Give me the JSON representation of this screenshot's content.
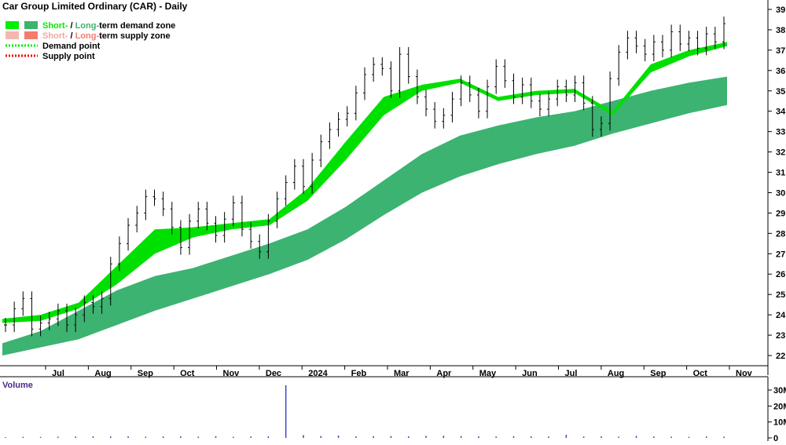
{
  "chart_data": {
    "type": "line",
    "title": "Car Group Limited Ordinary (CAR) - Daily",
    "legend": {
      "placement": "top-left",
      "items": [
        {
          "parts": [
            {
              "text": "Short-",
              "color": "#00ee00"
            },
            {
              "text": " / ",
              "color": "#000000"
            },
            {
              "text": "Long-",
              "color": "#3cb371"
            },
            {
              "text": "term demand zone",
              "color": "#000000"
            }
          ],
          "swatches": [
            "#00ee00",
            "#3cb371"
          ],
          "kind": "box"
        },
        {
          "parts": [
            {
              "text": "Short-",
              "color": "#f4a6a0"
            },
            {
              "text": " / ",
              "color": "#000000"
            },
            {
              "text": "Long-",
              "color": "#f47c6c"
            },
            {
              "text": "term supply zone",
              "color": "#000000"
            }
          ],
          "swatches": [
            "#f4b6b0",
            "#f47c6c"
          ],
          "kind": "box"
        },
        {
          "parts": [
            {
              "text": "Demand point",
              "color": "#000000"
            }
          ],
          "swatches": [
            "#00ee00"
          ],
          "kind": "dots"
        },
        {
          "parts": [
            {
              "text": "Supply point",
              "color": "#000000"
            }
          ],
          "swatches": [
            "#ee0000"
          ],
          "kind": "dots"
        }
      ]
    },
    "x_tick_labels": [
      "Jul",
      "Aug",
      "Sep",
      "Oct",
      "Nov",
      "Dec",
      "2024",
      "Feb",
      "Mar",
      "Apr",
      "May",
      "Jun",
      "Jul",
      "Aug",
      "Sep",
      "Oct",
      "Nov"
    ],
    "y_ticks": [
      22,
      23,
      24,
      25,
      26,
      27,
      28,
      29,
      30,
      31,
      32,
      33,
      34,
      35,
      36,
      37,
      38,
      39
    ],
    "ylim": [
      21.2,
      39.3
    ],
    "volume": {
      "label": "Volume",
      "y_tick_labels": [
        "0",
        "10M",
        "20M",
        "30M"
      ],
      "ylim": [
        0,
        34
      ],
      "values_millions": [
        0.5,
        0.7,
        0.6,
        0.8,
        0.9,
        1.0,
        0.9,
        1.0,
        0.8,
        0.9,
        1.0,
        0.8,
        1.1,
        0.7,
        0.9,
        1.0,
        33.0,
        1.8,
        1.2,
        1.5,
        1.0,
        1.1,
        1.2,
        1.0,
        1.3,
        1.4,
        1.2,
        1.0,
        0.9,
        1.1,
        1.0,
        0.9,
        2.0,
        0.9,
        1.0,
        0.8,
        1.3,
        0.9,
        0.8,
        0.7,
        0.9,
        0.8
      ]
    },
    "price": {
      "close": [
        23.5,
        24.3,
        24.8,
        23.3,
        23.6,
        23.8,
        24.2,
        23.5,
        24.0,
        24.6,
        24.4,
        24.8,
        26.5,
        27.5,
        28.4,
        29.0,
        29.8,
        29.7,
        29.2,
        28.3,
        27.3,
        28.6,
        29.2,
        28.5,
        27.9,
        28.7,
        29.5,
        28.2,
        27.6,
        27.1,
        28.6,
        29.7,
        30.5,
        31.3,
        30.3,
        31.6,
        32.5,
        33.1,
        33.6,
        33.9,
        34.9,
        35.8,
        36.3,
        36.1,
        35.0,
        36.8,
        35.7,
        34.7,
        34.1,
        33.5,
        33.8,
        34.6,
        35.4,
        34.8,
        34.0,
        35.2,
        36.2,
        35.5,
        34.7,
        35.3,
        34.5,
        34.1,
        34.6,
        35.2,
        34.8,
        35.4,
        34.4,
        33.1,
        33.4,
        35.6,
        36.9,
        37.6,
        37.2,
        36.8,
        37.4,
        37.0,
        37.9,
        37.3,
        37.6,
        37.1,
        37.8,
        37.4,
        38.3
      ]
    },
    "long_term_demand_zone": {
      "upper": [
        22.6,
        23.2,
        24.2,
        25.2,
        25.9,
        26.3,
        26.9,
        27.5,
        28.2,
        29.3,
        30.6,
        31.9,
        32.8,
        33.3,
        33.7,
        34.0,
        34.5,
        35.0,
        35.4,
        35.7
      ],
      "lower": [
        22.0,
        22.4,
        22.8,
        23.5,
        24.2,
        24.8,
        25.4,
        26.0,
        26.7,
        27.7,
        28.9,
        30.0,
        30.8,
        31.4,
        31.9,
        32.3,
        32.9,
        33.4,
        33.9,
        34.3
      ]
    },
    "short_term_demand_zone": {
      "upper": [
        23.8,
        24.0,
        24.6,
        26.4,
        28.2,
        28.3,
        28.5,
        28.7,
        30.2,
        32.5,
        34.7,
        35.3,
        35.6,
        34.7,
        35.0,
        35.1,
        34.0,
        36.3,
        37.0,
        37.4
      ],
      "lower": [
        23.6,
        23.7,
        24.3,
        25.5,
        27.0,
        27.8,
        28.2,
        28.4,
        29.6,
        31.6,
        33.8,
        35.0,
        35.4,
        34.5,
        34.8,
        34.9,
        33.8,
        35.9,
        36.7,
        37.2
      ]
    }
  }
}
